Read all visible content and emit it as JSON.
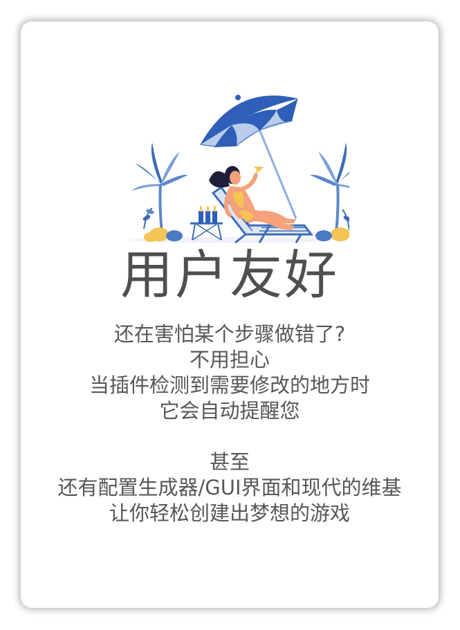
{
  "card": {
    "title": "用户友好",
    "lines_group1": [
      "还在害怕某个步骤做错了?",
      "不用担心",
      "当插件检测到需要修改的地方时",
      "它会自动提醒您"
    ],
    "lines_group2": [
      "甚至",
      "还有配置生成器/GUI界面和现代的维基",
      "让你轻松创建出梦想的游戏"
    ]
  },
  "colors": {
    "title": "#4f4f4f",
    "text": "#575757",
    "umbrella_blue": "#2f5fb8",
    "umbrella_light": "#b9cdea",
    "skin": "#f4a27b",
    "hair": "#1e1e3a"
  },
  "icons": [
    "beach-lounge-illustration",
    "umbrella-icon",
    "palm-tree-icon",
    "bottle-icon"
  ]
}
